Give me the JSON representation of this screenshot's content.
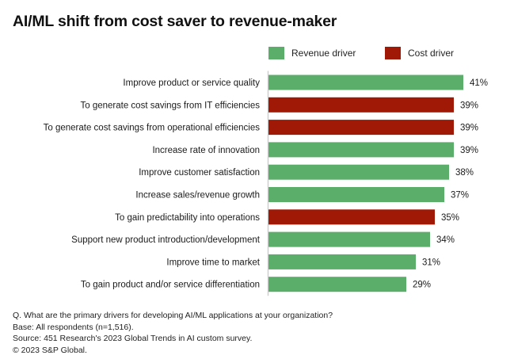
{
  "chart_data": {
    "type": "bar",
    "orientation": "horizontal",
    "title": "AI/ML shift from cost saver to revenue-maker",
    "xlabel": "",
    "ylabel": "",
    "xlim": [
      0,
      45
    ],
    "grid": false,
    "legend": {
      "placement": "top-right",
      "entries": [
        {
          "name": "Revenue driver",
          "color": "#5BAD6A"
        },
        {
          "name": "Cost driver",
          "color": "#A01806"
        }
      ]
    },
    "categories": [
      "Improve product or service quality",
      "To generate cost savings from IT efficiencies",
      "To generate cost savings from operational efficiencies",
      "Increase rate of innovation",
      "Improve customer satisfaction",
      "Increase sales/revenue growth",
      "To gain predictability into operations",
      "Support new product introduction/development",
      "Improve time to market",
      "To gain product and/or service differentiation"
    ],
    "values": [
      41,
      39,
      39,
      39,
      38,
      37,
      35,
      34,
      31,
      29
    ],
    "value_labels": [
      "41%",
      "39%",
      "39%",
      "39%",
      "38%",
      "37%",
      "35%",
      "34%",
      "31%",
      "29%"
    ],
    "bar_types": [
      "Revenue driver",
      "Cost driver",
      "Cost driver",
      "Revenue driver",
      "Revenue driver",
      "Revenue driver",
      "Cost driver",
      "Revenue driver",
      "Revenue driver",
      "Revenue driver"
    ]
  },
  "colors": {
    "revenue": "#5BAD6A",
    "cost": "#A01806",
    "axis": "#cfcfcf"
  },
  "footer": {
    "question": "Q. What are the primary drivers for developing AI/ML applications at your organization?",
    "base": "Base: All respondents (n=1,516).",
    "source": "Source: 451 Research's 2023 Global Trends in AI custom survey.",
    "copyright": "© 2023 S&P Global."
  }
}
